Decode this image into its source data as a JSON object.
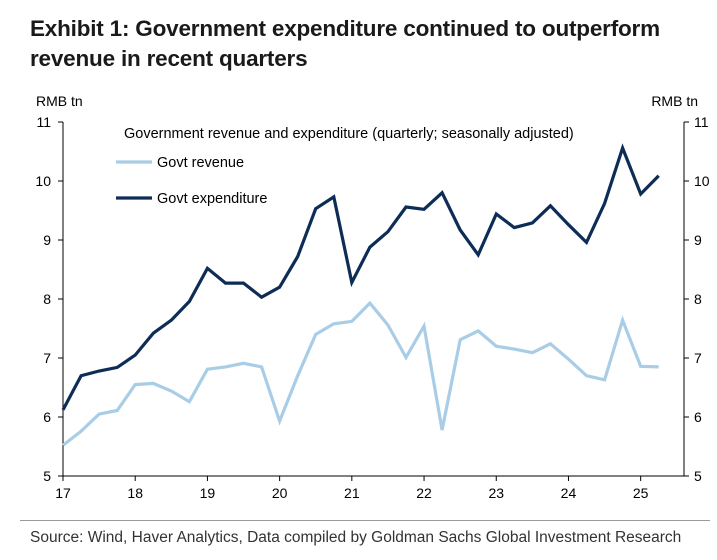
{
  "title_line1": "Exhibit 1: Government expenditure continued to outperform",
  "title_line2": "revenue in recent quarters",
  "source": "Source: Wind, Haver Analytics, Data compiled by Goldman Sachs Global Investment Research",
  "colors": {
    "revenue": "#a9cde6",
    "expenditure": "#0d2d57",
    "axis": "#000000"
  },
  "chart_data": {
    "type": "line",
    "title": "Government revenue and expenditure (quarterly; seasonally adjusted)",
    "ylabel_left": "RMB tn",
    "ylabel_right": "RMB tn",
    "ylim": [
      5,
      11
    ],
    "xlim": [
      17.0,
      25.6
    ],
    "yticks": [
      5,
      6,
      7,
      8,
      9,
      10,
      11
    ],
    "xticks": [
      "17",
      "18",
      "19",
      "20",
      "21",
      "22",
      "23",
      "24",
      "25"
    ],
    "grid": false,
    "legend_position": "top-left",
    "x": [
      17.0,
      17.25,
      17.5,
      17.75,
      18.0,
      18.25,
      18.5,
      18.75,
      19.0,
      19.25,
      19.5,
      19.75,
      20.0,
      20.25,
      20.5,
      20.75,
      21.0,
      21.25,
      21.5,
      21.75,
      22.0,
      22.25,
      22.5,
      22.75,
      23.0,
      23.25,
      23.5,
      23.75,
      24.0,
      24.25,
      24.5,
      24.75,
      25.0,
      25.25
    ],
    "series": [
      {
        "name": "Govt revenue",
        "values": [
          5.52,
          5.76,
          6.05,
          6.11,
          6.55,
          6.57,
          6.44,
          6.26,
          6.81,
          6.85,
          6.91,
          6.85,
          5.93,
          6.7,
          7.4,
          7.58,
          7.62,
          7.93,
          7.56,
          7.01,
          7.54,
          5.78,
          7.31,
          7.46,
          7.2,
          7.15,
          7.09,
          7.24,
          6.98,
          6.7,
          6.63,
          7.64,
          6.86,
          6.85
        ]
      },
      {
        "name": "Govt expenditure",
        "values": [
          6.12,
          6.7,
          6.78,
          6.84,
          7.05,
          7.42,
          7.64,
          7.96,
          8.52,
          8.27,
          8.27,
          8.03,
          8.2,
          8.72,
          9.53,
          9.73,
          8.28,
          8.88,
          9.14,
          9.56,
          9.52,
          9.8,
          9.17,
          8.75,
          9.44,
          9.21,
          9.29,
          9.58,
          9.26,
          8.96,
          9.62,
          10.56,
          9.78,
          10.09
        ]
      }
    ]
  }
}
